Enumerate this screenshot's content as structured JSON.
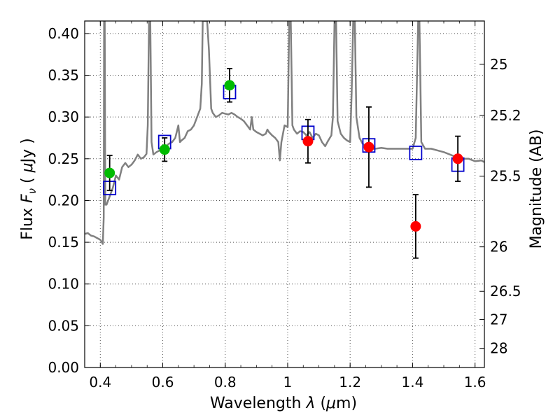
{
  "chart_data": {
    "type": "scatter",
    "title": "",
    "xlabel": "Wavelength  λ (μm)",
    "ylabel": "Flux  Fν ( μJy )",
    "ylabel_parts": [
      "Flux  ",
      "F",
      "ν",
      " ( ",
      "μ",
      "Jy )"
    ],
    "xlabel_parts": [
      "Wavelength  ",
      "λ",
      " (",
      "μ",
      "m)"
    ],
    "y2label": "Magnitude (AB)",
    "xlim": [
      0.35,
      1.63
    ],
    "ylim": [
      0.0,
      0.415
    ],
    "grid": true,
    "x_ticks": [
      0.4,
      0.6,
      0.8,
      1.0,
      1.2,
      1.4,
      1.6
    ],
    "x_tick_labels": [
      "0.4",
      "0.6",
      "0.8",
      "1",
      "1.2",
      "1.4",
      "1.6"
    ],
    "y_ticks": [
      0.0,
      0.05,
      0.1,
      0.15,
      0.2,
      0.25,
      0.3,
      0.35,
      0.4
    ],
    "y_tick_labels": [
      "0.00",
      "0.05",
      "0.10",
      "0.15",
      "0.20",
      "0.25",
      "0.30",
      "0.35",
      "0.40"
    ],
    "y2_ticks": [
      {
        "label": "25",
        "flux": 0.3631
      },
      {
        "label": "25.2",
        "flux": 0.302
      },
      {
        "label": "25.5",
        "flux": 0.2291
      },
      {
        "label": "26",
        "flux": 0.1445
      },
      {
        "label": "26.5",
        "flux": 0.0912
      },
      {
        "label": "27",
        "flux": 0.0575
      },
      {
        "label": "28",
        "flux": 0.0229
      }
    ],
    "colors": {
      "model_line": "#808080",
      "green_points": "#00bb00",
      "red_points": "#ff0000",
      "model_squares": "#0000cc",
      "error_bars": "#000000",
      "grid": "#555555"
    },
    "series": [
      {
        "kind": "line",
        "values": [
          [
            0.35,
            0.16
          ],
          [
            0.36,
            0.161
          ],
          [
            0.37,
            0.158
          ],
          [
            0.38,
            0.157
          ],
          [
            0.39,
            0.155
          ],
          [
            0.4,
            0.153
          ],
          [
            0.405,
            0.15
          ],
          [
            0.408,
            0.148
          ],
          [
            0.411,
            0.18
          ],
          [
            0.412,
            0.415
          ],
          [
            0.414,
            0.415
          ],
          [
            0.416,
            0.195
          ],
          [
            0.42,
            0.195
          ],
          [
            0.43,
            0.205
          ],
          [
            0.44,
            0.215
          ],
          [
            0.45,
            0.23
          ],
          [
            0.46,
            0.225
          ],
          [
            0.47,
            0.24
          ],
          [
            0.48,
            0.245
          ],
          [
            0.49,
            0.24
          ],
          [
            0.5,
            0.243
          ],
          [
            0.51,
            0.248
          ],
          [
            0.52,
            0.255
          ],
          [
            0.53,
            0.25
          ],
          [
            0.54,
            0.252
          ],
          [
            0.548,
            0.256
          ],
          [
            0.552,
            0.29
          ],
          [
            0.556,
            0.415
          ],
          [
            0.56,
            0.415
          ],
          [
            0.564,
            0.27
          ],
          [
            0.57,
            0.255
          ],
          [
            0.58,
            0.258
          ],
          [
            0.59,
            0.26
          ],
          [
            0.6,
            0.262
          ],
          [
            0.61,
            0.265
          ],
          [
            0.62,
            0.268
          ],
          [
            0.63,
            0.27
          ],
          [
            0.64,
            0.275
          ],
          [
            0.65,
            0.29
          ],
          [
            0.655,
            0.27
          ],
          [
            0.66,
            0.272
          ],
          [
            0.67,
            0.275
          ],
          [
            0.68,
            0.283
          ],
          [
            0.69,
            0.285
          ],
          [
            0.7,
            0.29
          ],
          [
            0.71,
            0.3
          ],
          [
            0.72,
            0.31
          ],
          [
            0.725,
            0.34
          ],
          [
            0.728,
            0.415
          ],
          [
            0.735,
            0.415
          ],
          [
            0.742,
            0.415
          ],
          [
            0.748,
            0.38
          ],
          [
            0.755,
            0.31
          ],
          [
            0.76,
            0.305
          ],
          [
            0.77,
            0.3
          ],
          [
            0.78,
            0.302
          ],
          [
            0.79,
            0.305
          ],
          [
            0.8,
            0.304
          ],
          [
            0.81,
            0.303
          ],
          [
            0.82,
            0.305
          ],
          [
            0.83,
            0.303
          ],
          [
            0.84,
            0.3
          ],
          [
            0.85,
            0.298
          ],
          [
            0.86,
            0.295
          ],
          [
            0.87,
            0.29
          ],
          [
            0.88,
            0.285
          ],
          [
            0.885,
            0.3
          ],
          [
            0.89,
            0.285
          ],
          [
            0.9,
            0.282
          ],
          [
            0.91,
            0.28
          ],
          [
            0.92,
            0.278
          ],
          [
            0.93,
            0.28
          ],
          [
            0.935,
            0.285
          ],
          [
            0.94,
            0.282
          ],
          [
            0.95,
            0.278
          ],
          [
            0.96,
            0.275
          ],
          [
            0.97,
            0.27
          ],
          [
            0.975,
            0.248
          ],
          [
            0.98,
            0.27
          ],
          [
            0.99,
            0.29
          ],
          [
            1.0,
            0.288
          ],
          [
            1.005,
            0.415
          ],
          [
            1.01,
            0.415
          ],
          [
            1.015,
            0.29
          ],
          [
            1.02,
            0.285
          ],
          [
            1.03,
            0.28
          ],
          [
            1.04,
            0.283
          ],
          [
            1.05,
            0.282
          ],
          [
            1.06,
            0.278
          ],
          [
            1.07,
            0.282
          ],
          [
            1.08,
            0.275
          ],
          [
            1.09,
            0.28
          ],
          [
            1.1,
            0.278
          ],
          [
            1.11,
            0.27
          ],
          [
            1.12,
            0.265
          ],
          [
            1.13,
            0.272
          ],
          [
            1.14,
            0.278
          ],
          [
            1.145,
            0.3
          ],
          [
            1.15,
            0.415
          ],
          [
            1.155,
            0.415
          ],
          [
            1.16,
            0.295
          ],
          [
            1.17,
            0.28
          ],
          [
            1.18,
            0.275
          ],
          [
            1.19,
            0.272
          ],
          [
            1.2,
            0.27
          ],
          [
            1.205,
            0.33
          ],
          [
            1.21,
            0.415
          ],
          [
            1.215,
            0.415
          ],
          [
            1.22,
            0.3
          ],
          [
            1.23,
            0.275
          ],
          [
            1.24,
            0.268
          ],
          [
            1.25,
            0.265
          ],
          [
            1.26,
            0.262
          ],
          [
            1.28,
            0.262
          ],
          [
            1.3,
            0.263
          ],
          [
            1.32,
            0.262
          ],
          [
            1.34,
            0.262
          ],
          [
            1.36,
            0.262
          ],
          [
            1.38,
            0.262
          ],
          [
            1.4,
            0.262
          ],
          [
            1.41,
            0.275
          ],
          [
            1.418,
            0.415
          ],
          [
            1.422,
            0.415
          ],
          [
            1.428,
            0.27
          ],
          [
            1.44,
            0.262
          ],
          [
            1.46,
            0.262
          ],
          [
            1.48,
            0.26
          ],
          [
            1.5,
            0.258
          ],
          [
            1.52,
            0.255
          ],
          [
            1.54,
            0.252
          ],
          [
            1.56,
            0.25
          ],
          [
            1.58,
            0.25
          ],
          [
            1.6,
            0.247
          ],
          [
            1.62,
            0.248
          ],
          [
            1.63,
            0.246
          ]
        ]
      },
      {
        "kind": "green_points",
        "values": [
          {
            "x": 0.43,
            "y": 0.233,
            "err": 0.021
          },
          {
            "x": 0.606,
            "y": 0.261,
            "err": 0.014
          },
          {
            "x": 0.814,
            "y": 0.338,
            "err": 0.02
          }
        ]
      },
      {
        "kind": "red_points",
        "values": [
          {
            "x": 1.065,
            "y": 0.271,
            "err": 0.026
          },
          {
            "x": 1.26,
            "y": 0.264,
            "err": 0.048
          },
          {
            "x": 1.41,
            "y": 0.169,
            "err": 0.038
          },
          {
            "x": 1.545,
            "y": 0.25,
            "err": 0.027
          }
        ]
      },
      {
        "kind": "model_squares",
        "values": [
          {
            "x": 0.43,
            "y": 0.215
          },
          {
            "x": 0.606,
            "y": 0.27
          },
          {
            "x": 0.814,
            "y": 0.33
          },
          {
            "x": 1.065,
            "y": 0.281
          },
          {
            "x": 1.26,
            "y": 0.266
          },
          {
            "x": 1.41,
            "y": 0.257
          },
          {
            "x": 1.545,
            "y": 0.243
          }
        ]
      }
    ]
  }
}
